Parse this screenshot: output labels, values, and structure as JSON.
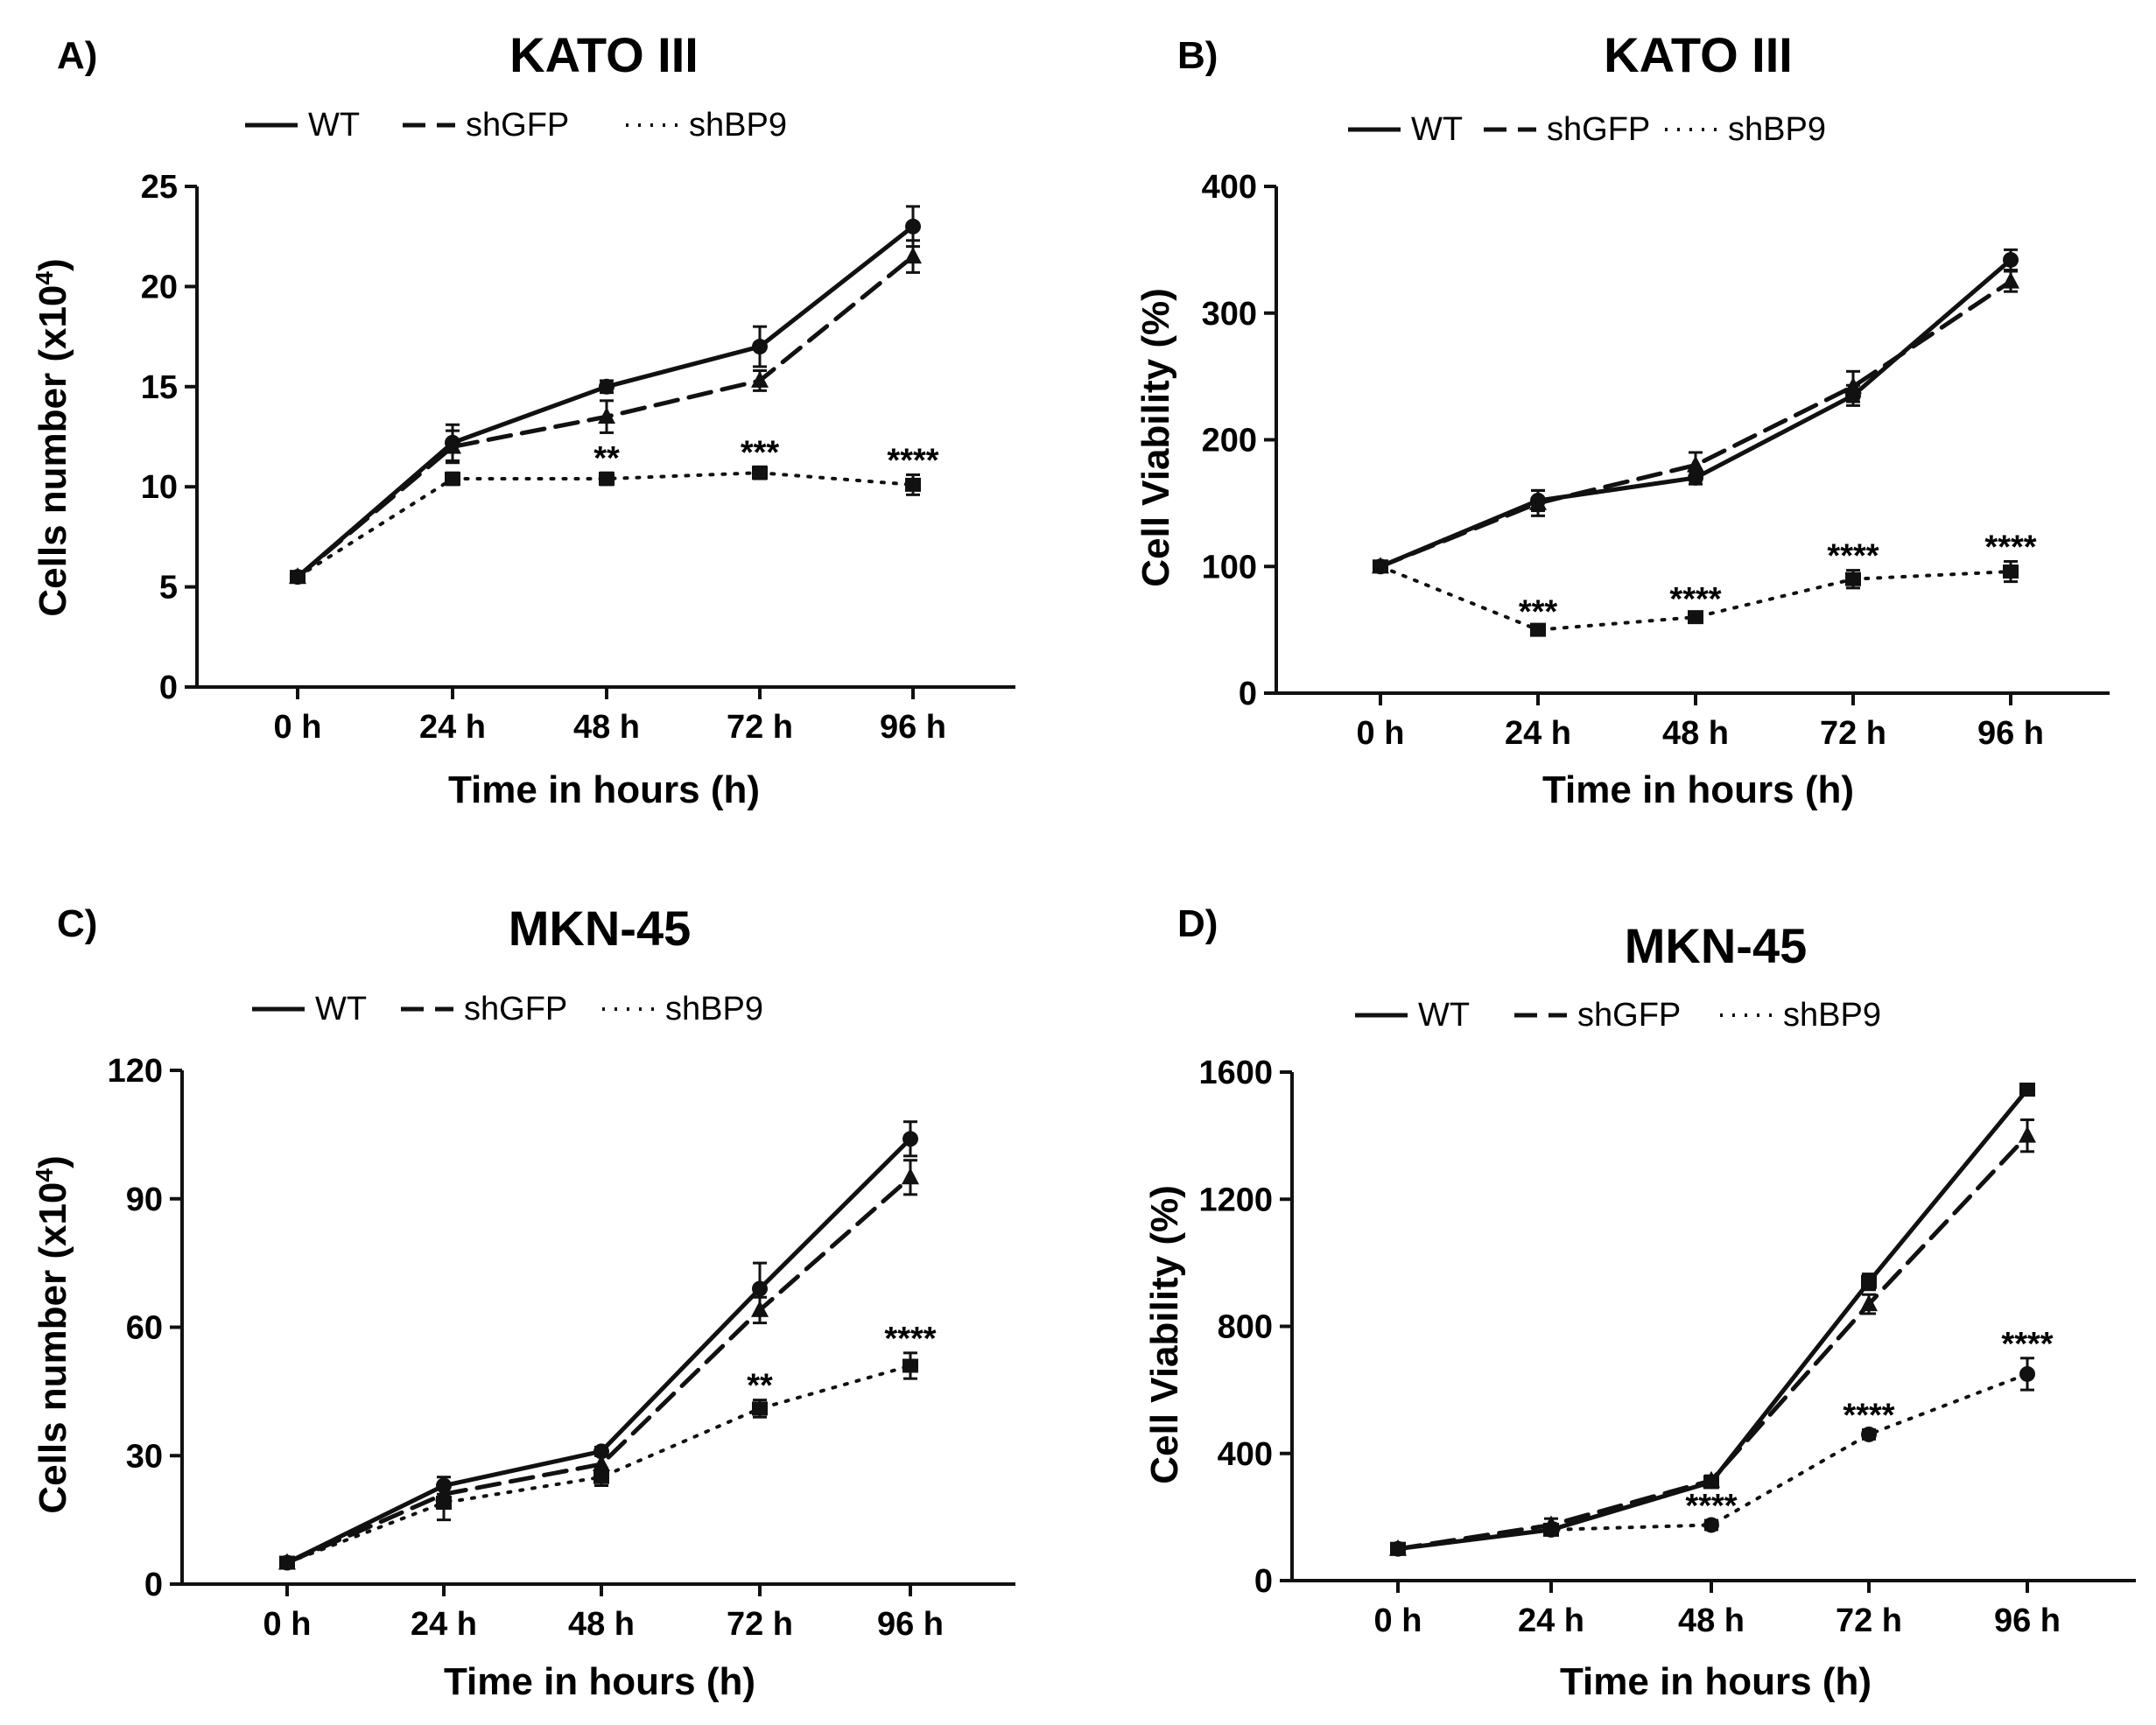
{
  "figure": {
    "chart_data": [
      {
        "type": "line",
        "panel": "A)",
        "title": "KATO III",
        "xlabel": "Time in hours (h)",
        "ylabel": "Cells number (x10",
        "ylabel_sup": "4",
        "ylabel_close": ")",
        "categories": [
          "0 h",
          "24 h",
          "48 h",
          "72 h",
          "96 h"
        ],
        "ylim": [
          0,
          25
        ],
        "yticks": [
          0,
          5,
          10,
          15,
          20,
          25
        ],
        "series": [
          {
            "name": "WT",
            "style": "solid",
            "marker": "circle",
            "values": [
              5.5,
              12.2,
              15.0,
              17.0,
              23.0
            ],
            "errors": [
              0.2,
              0.9,
              0.3,
              1.0,
              1.0
            ]
          },
          {
            "name": "shGFP",
            "style": "dashed",
            "marker": "triangle",
            "values": [
              5.5,
              12.0,
              13.5,
              15.3,
              21.5
            ],
            "errors": [
              0.2,
              0.8,
              0.8,
              0.5,
              0.8
            ]
          },
          {
            "name": "shBP9",
            "style": "dotted",
            "marker": "square",
            "values": [
              5.5,
              10.4,
              10.4,
              10.7,
              10.1
            ],
            "errors": [
              0.2,
              0.3,
              0.3,
              0.3,
              0.5
            ]
          }
        ],
        "significance": [
          "",
          "",
          "**",
          "***",
          "****"
        ]
      },
      {
        "type": "line",
        "panel": "B)",
        "title": "KATO III",
        "xlabel": "Time in hours (h)",
        "ylabel": "Cell Viability (%)",
        "ylabel_sup": "",
        "ylabel_close": "",
        "categories": [
          "0 h",
          "24 h",
          "48 h",
          "72 h",
          "96 h"
        ],
        "ylim": [
          0,
          400
        ],
        "yticks": [
          0,
          100,
          200,
          300,
          400
        ],
        "series": [
          {
            "name": "WT",
            "style": "solid",
            "marker": "circle",
            "values": [
              100,
              152,
              170,
              235,
              342
            ],
            "errors": [
              3,
              8,
              5,
              8,
              8
            ]
          },
          {
            "name": "shGFP",
            "style": "dashed",
            "marker": "triangle",
            "values": [
              100,
              150,
              180,
              242,
              325
            ],
            "errors": [
              3,
              10,
              10,
              12,
              8
            ]
          },
          {
            "name": "shBP9",
            "style": "dotted",
            "marker": "square",
            "values": [
              100,
              50,
              60,
              90,
              96
            ],
            "errors": [
              3,
              3,
              3,
              7,
              8
            ]
          }
        ],
        "significance": [
          "",
          "***",
          "****",
          "****",
          "****"
        ]
      },
      {
        "type": "line",
        "panel": "C)",
        "title": "MKN-45",
        "xlabel": "Time in hours (h)",
        "ylabel": "Cells number (x10",
        "ylabel_sup": "4",
        "ylabel_close": ")",
        "categories": [
          "0 h",
          "24 h",
          "48 h",
          "72 h",
          "96 h"
        ],
        "ylim": [
          0,
          120
        ],
        "yticks": [
          0,
          30,
          60,
          90,
          120
        ],
        "series": [
          {
            "name": "WT",
            "style": "solid",
            "marker": "circle",
            "values": [
              5,
              23,
              31,
              69,
              104
            ],
            "errors": [
              1,
              2,
              1,
              6,
              4
            ]
          },
          {
            "name": "shGFP",
            "style": "dashed",
            "marker": "triangle",
            "values": [
              5,
              21,
              28,
              64,
              95
            ],
            "errors": [
              1,
              2,
              2,
              3,
              4
            ]
          },
          {
            "name": "shBP9",
            "style": "dotted",
            "marker": "square",
            "values": [
              5,
              19,
              25,
              41,
              51
            ],
            "errors": [
              1,
              4,
              2,
              2,
              3
            ]
          }
        ],
        "significance": [
          "",
          "",
          "",
          "**",
          "****"
        ]
      },
      {
        "type": "line",
        "panel": "D)",
        "title": "MKN-45",
        "xlabel": "Time in hours (h)",
        "ylabel": "Cell Viability (%)",
        "ylabel_sup": "",
        "ylabel_close": "",
        "categories": [
          "0 h",
          "24 h",
          "48 h",
          "72 h",
          "96 h"
        ],
        "ylim": [
          0,
          1600
        ],
        "yticks": [
          0,
          400,
          800,
          1200,
          1600
        ],
        "series": [
          {
            "name": "WT",
            "style": "solid",
            "marker": "square",
            "values": [
              100,
              160,
              310,
              940,
              1545
            ],
            "errors": [
              15,
              15,
              15,
              25,
              15
            ]
          },
          {
            "name": "shGFP",
            "style": "dashed",
            "marker": "triangle",
            "values": [
              100,
              175,
              315,
              870,
              1400
            ],
            "errors": [
              15,
              20,
              15,
              30,
              50
            ]
          },
          {
            "name": "shBP9",
            "style": "dotted",
            "marker": "circle",
            "values": [
              100,
              160,
              175,
              460,
              650
            ],
            "errors": [
              15,
              15,
              15,
              15,
              50
            ]
          }
        ],
        "significance": [
          "",
          "",
          "****",
          "****",
          "****"
        ]
      }
    ]
  }
}
